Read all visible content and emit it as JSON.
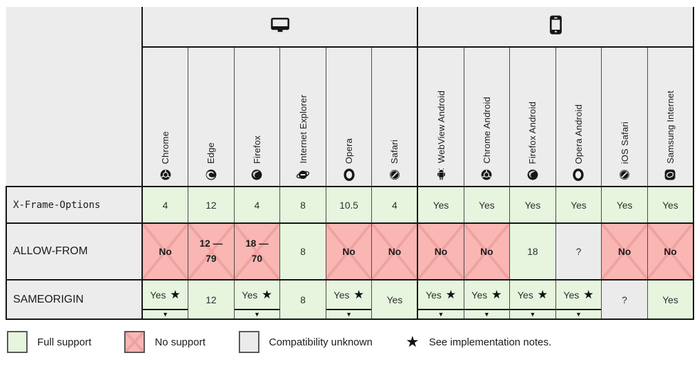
{
  "colors": {
    "full_support_bg": "#e7f4de",
    "no_support_bg": "#fab6b3",
    "no_support_cross": "#eda3a1",
    "unknown_bg": "#ebebeb",
    "header_bg": "#ececec",
    "border_strong": "#141414"
  },
  "icons": {
    "star_glyph": "★",
    "caret_glyph": "▼"
  },
  "device_groups": [
    {
      "name": "desktop",
      "icon": "desktop-icon",
      "span": 6
    },
    {
      "name": "mobile",
      "icon": "mobile-icon",
      "span": 6
    }
  ],
  "browsers": [
    {
      "label": "Chrome",
      "icon": "chrome-icon"
    },
    {
      "label": "Edge",
      "icon": "edge-icon"
    },
    {
      "label": "Firefox",
      "icon": "firefox-icon"
    },
    {
      "label": "Internet Explorer",
      "icon": "internet-explorer-icon"
    },
    {
      "label": "Opera",
      "icon": "opera-icon"
    },
    {
      "label": "Safari",
      "icon": "safari-icon"
    },
    {
      "label": "WebView Android",
      "icon": "webview-android-icon"
    },
    {
      "label": "Chrome Android",
      "icon": "chrome-android-icon"
    },
    {
      "label": "Firefox Android",
      "icon": "firefox-android-icon"
    },
    {
      "label": "Opera Android",
      "icon": "opera-android-icon"
    },
    {
      "label": "iOS Safari",
      "icon": "ios-safari-icon"
    },
    {
      "label": "Samsung Internet",
      "icon": "samsung-internet-icon"
    }
  ],
  "rows": [
    {
      "label": "X-Frame-Options",
      "code": true,
      "cells": [
        {
          "text": "4",
          "support": "full"
        },
        {
          "text": "12",
          "support": "full"
        },
        {
          "text": "4",
          "support": "full"
        },
        {
          "text": "8",
          "support": "full"
        },
        {
          "text": "10.5",
          "support": "full"
        },
        {
          "text": "4",
          "support": "full"
        },
        {
          "text": "Yes",
          "support": "full"
        },
        {
          "text": "Yes",
          "support": "full"
        },
        {
          "text": "Yes",
          "support": "full"
        },
        {
          "text": "Yes",
          "support": "full"
        },
        {
          "text": "Yes",
          "support": "full"
        },
        {
          "text": "Yes",
          "support": "full"
        }
      ]
    },
    {
      "label": "ALLOW-FROM",
      "code": false,
      "cells": [
        {
          "text": "No",
          "support": "none"
        },
        {
          "text": "12 — 79",
          "support": "none",
          "range": true
        },
        {
          "text": "18 — 70",
          "support": "none",
          "range": true
        },
        {
          "text": "8",
          "support": "full"
        },
        {
          "text": "No",
          "support": "none"
        },
        {
          "text": "No",
          "support": "none"
        },
        {
          "text": "No",
          "support": "none"
        },
        {
          "text": "No",
          "support": "none"
        },
        {
          "text": "18",
          "support": "full"
        },
        {
          "text": "?",
          "support": "unknown"
        },
        {
          "text": "No",
          "support": "none"
        },
        {
          "text": "No",
          "support": "none"
        }
      ]
    },
    {
      "label": "SAMEORIGIN",
      "code": false,
      "cells": [
        {
          "text": "Yes",
          "support": "full",
          "star": true,
          "notes": true
        },
        {
          "text": "12",
          "support": "full"
        },
        {
          "text": "Yes",
          "support": "full",
          "star": true,
          "notes": true
        },
        {
          "text": "8",
          "support": "full"
        },
        {
          "text": "Yes",
          "support": "full",
          "star": true,
          "notes": true
        },
        {
          "text": "Yes",
          "support": "full"
        },
        {
          "text": "Yes",
          "support": "full",
          "star": true,
          "notes": true
        },
        {
          "text": "Yes",
          "support": "full",
          "star": true,
          "notes": true
        },
        {
          "text": "Yes",
          "support": "full",
          "star": true,
          "notes": true
        },
        {
          "text": "Yes",
          "support": "full",
          "star": true,
          "notes": true
        },
        {
          "text": "?",
          "support": "unknown"
        },
        {
          "text": "Yes",
          "support": "full"
        }
      ]
    }
  ],
  "legend": {
    "full_support": "Full support",
    "no_support": "No support",
    "unknown": "Compatibility unknown",
    "notes": "See implementation notes.",
    "star_glyph": "★"
  }
}
